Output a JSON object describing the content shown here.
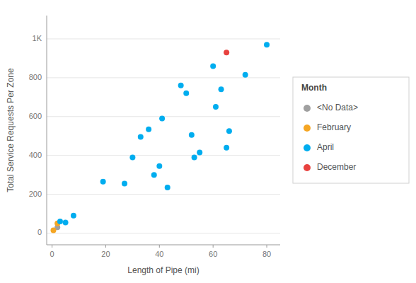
{
  "chart_data": {
    "type": "scatter",
    "xlabel": "Length of Pipe (mi)",
    "ylabel": "Total Service Requests Per Zone",
    "xlim": [
      -2,
      85
    ],
    "ylim": [
      -60,
      1120
    ],
    "xticks": [
      0,
      20,
      40,
      60,
      80
    ],
    "yticks": [
      0,
      200,
      400,
      600,
      800,
      {
        "value": 1000,
        "label": "1K"
      }
    ],
    "grid": true,
    "legend": "right",
    "legend_title": "Month",
    "series": [
      {
        "name": "<No Data>",
        "color": "#a0a0a0",
        "x": [
          2
        ],
        "values": [
          30
        ]
      },
      {
        "name": "February",
        "color": "#f5a623",
        "x": [
          0.5,
          2
        ],
        "values": [
          15,
          50
        ]
      },
      {
        "name": "April",
        "color": "#00adef",
        "x": [
          3,
          5,
          8,
          19,
          27,
          30,
          33,
          36,
          38,
          40,
          41,
          43,
          48,
          50,
          52,
          53,
          55,
          60,
          61,
          63,
          65,
          66,
          72,
          80
        ],
        "values": [
          60,
          55,
          90,
          265,
          255,
          390,
          495,
          535,
          300,
          345,
          590,
          235,
          760,
          720,
          505,
          390,
          415,
          860,
          650,
          740,
          440,
          525,
          815,
          970
        ]
      },
      {
        "name": "December",
        "color": "#e8423f",
        "x": [
          65
        ],
        "values": [
          930
        ]
      }
    ]
  }
}
